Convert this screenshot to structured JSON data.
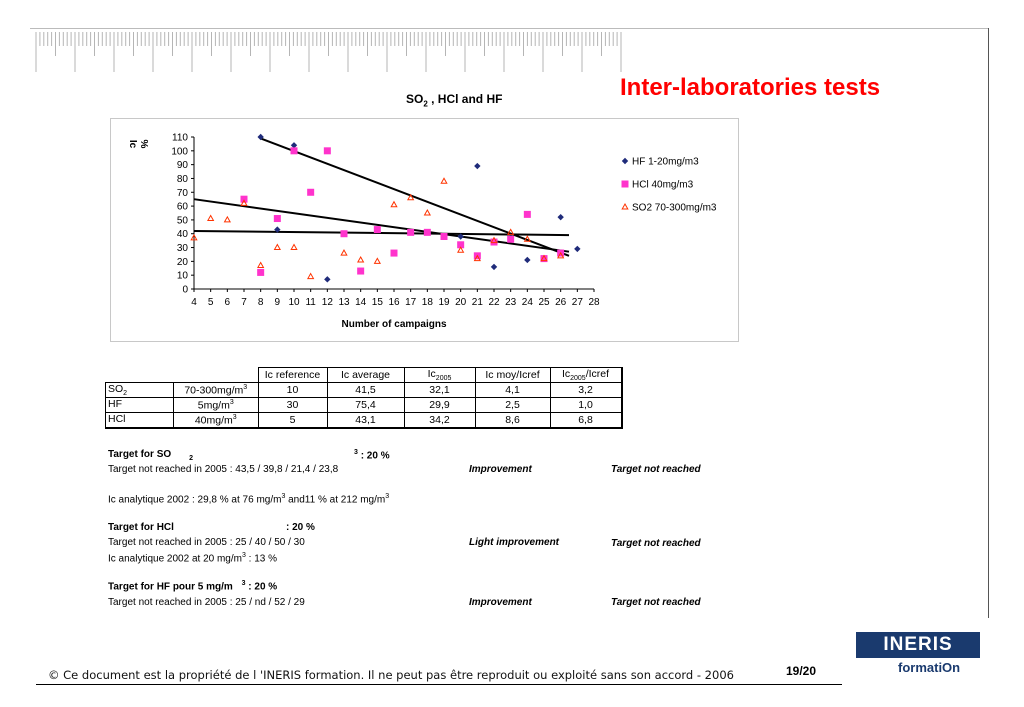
{
  "slide": {
    "title": "Inter-laboratories tests",
    "footer": "© Ce document est la propriété de l 'INERIS formation. Il ne peut pas être reproduit ou exploité sans son accord - 2006",
    "page": "19/20",
    "logo_top": "INERIS",
    "logo_bottom": "formatiOn"
  },
  "chart_data": {
    "type": "scatter",
    "title_main": "SO",
    "title_sub": "2",
    "title_rest": " , HCl and HF",
    "xlabel": "Number of campaigns",
    "ylabel": "Ic %",
    "xlim": [
      4,
      28
    ],
    "ylim": [
      0,
      110
    ],
    "xticks": [
      4,
      5,
      6,
      7,
      8,
      9,
      10,
      11,
      12,
      13,
      14,
      15,
      16,
      17,
      18,
      19,
      20,
      21,
      22,
      23,
      24,
      25,
      26,
      27,
      28
    ],
    "yticks": [
      0,
      10,
      20,
      30,
      40,
      50,
      60,
      70,
      80,
      90,
      100,
      110
    ],
    "legend_position": "right",
    "series": [
      {
        "name": "HF 1-20mg/m3",
        "marker": "diamond",
        "color": "#1f2b7a",
        "points": [
          [
            8,
            110
          ],
          [
            9,
            43
          ],
          [
            10,
            104
          ],
          [
            12,
            7
          ],
          [
            20,
            38
          ],
          [
            21,
            89
          ],
          [
            22,
            16
          ],
          [
            23,
            37
          ],
          [
            24,
            21
          ],
          [
            26,
            52
          ],
          [
            27,
            29
          ]
        ]
      },
      {
        "name": "HCl 40mg/m3",
        "marker": "square",
        "color": "#ff33cc",
        "points": [
          [
            7,
            65
          ],
          [
            8,
            12
          ],
          [
            9,
            51
          ],
          [
            10,
            100
          ],
          [
            11,
            70
          ],
          [
            12,
            100
          ],
          [
            13,
            40
          ],
          [
            14,
            13
          ],
          [
            15,
            43
          ],
          [
            16,
            26
          ],
          [
            17,
            41
          ],
          [
            18,
            41
          ],
          [
            19,
            38
          ],
          [
            20,
            32
          ],
          [
            21,
            24
          ],
          [
            22,
            34
          ],
          [
            23,
            36
          ],
          [
            24,
            54
          ],
          [
            25,
            22
          ],
          [
            26,
            26
          ]
        ]
      },
      {
        "name": "SO2 70-300mg/m3",
        "marker": "triangle",
        "color": "#ff3300",
        "points": [
          [
            4,
            37
          ],
          [
            5,
            51
          ],
          [
            6,
            50
          ],
          [
            7,
            62
          ],
          [
            8,
            17
          ],
          [
            9,
            30
          ],
          [
            10,
            30
          ],
          [
            11,
            9
          ],
          [
            13,
            26
          ],
          [
            14,
            21
          ],
          [
            15,
            20
          ],
          [
            16,
            61
          ],
          [
            17,
            66
          ],
          [
            18,
            55
          ],
          [
            19,
            78
          ],
          [
            20,
            28
          ],
          [
            21,
            22
          ],
          [
            22,
            35
          ],
          [
            23,
            41
          ],
          [
            24,
            36
          ],
          [
            25,
            22
          ],
          [
            26,
            24
          ]
        ]
      }
    ],
    "trendlines": [
      {
        "from": [
          8,
          109
        ],
        "to": [
          26.5,
          24
        ]
      },
      {
        "from": [
          4,
          65
        ],
        "to": [
          26.5,
          27
        ]
      },
      {
        "from": [
          4,
          42
        ],
        "to": [
          26.5,
          39
        ]
      }
    ]
  },
  "table": {
    "headers": [
      "Ic reference",
      "Ic average",
      "Ic",
      "2005",
      "Ic moy/Icref",
      "Ic",
      "2005",
      "/Icref"
    ],
    "rows": [
      {
        "gas": "SO",
        "gas_sub": "2",
        "range": "70-300mg/m",
        "range_sup": "3",
        "ref": "10",
        "avg": "41,5",
        "ic2005": "32,1",
        "moy": "4,1",
        "ratio": "3,2"
      },
      {
        "gas": "HF",
        "gas_sub": "",
        "range": "5mg/m",
        "range_sup": "3",
        "ref": "30",
        "avg": "75,4",
        "ic2005": "29,9",
        "moy": "2,5",
        "ratio": "1,0"
      },
      {
        "gas": "HCl",
        "gas_sub": "",
        "range": "40mg/m",
        "range_sup": "3",
        "ref": "5",
        "avg": "43,1",
        "ic2005": "34,2",
        "moy": "8,6",
        "ratio": "6,8"
      }
    ]
  },
  "notes": {
    "so2_title": "Target for SO",
    "so2_sub": "2",
    "so2_sup": "3",
    "so2_target": ": 20 %",
    "so2_line": "Target not reached in 2005 : 43,5 / 39,8 / 21,4 / 23,8",
    "so2_status": "Improvement",
    "so2_result": "Target not reached",
    "ic_2002_a": "Ic analytique 2002  :  29,8 % at 76 mg/m",
    "ic_2002_sup1": "3",
    "ic_2002_b": " and11 % at 212 mg/m",
    "ic_2002_sup2": "3",
    "hcl_title": "Target for HCl",
    "hcl_target": ": 20 %",
    "hcl_line": "Target not reached in 2005 : 25 / 40 / 50 / 30",
    "hcl_status": "Light improvement",
    "hcl_result": "Target not reached",
    "hcl_ic_a": "Ic analytique 2002 at 20 mg/m",
    "hcl_ic_sup": "3",
    "hcl_ic_b": " : 13 %",
    "hf_title": "Target for HF pour 5 mg/m",
    "hf_sup": "3",
    "hf_target": ": 20 %",
    "hf_line": "Target not reached in 2005 : 25 / nd / 52 / 29",
    "hf_status": "Improvement",
    "hf_result": "Target not reached"
  }
}
